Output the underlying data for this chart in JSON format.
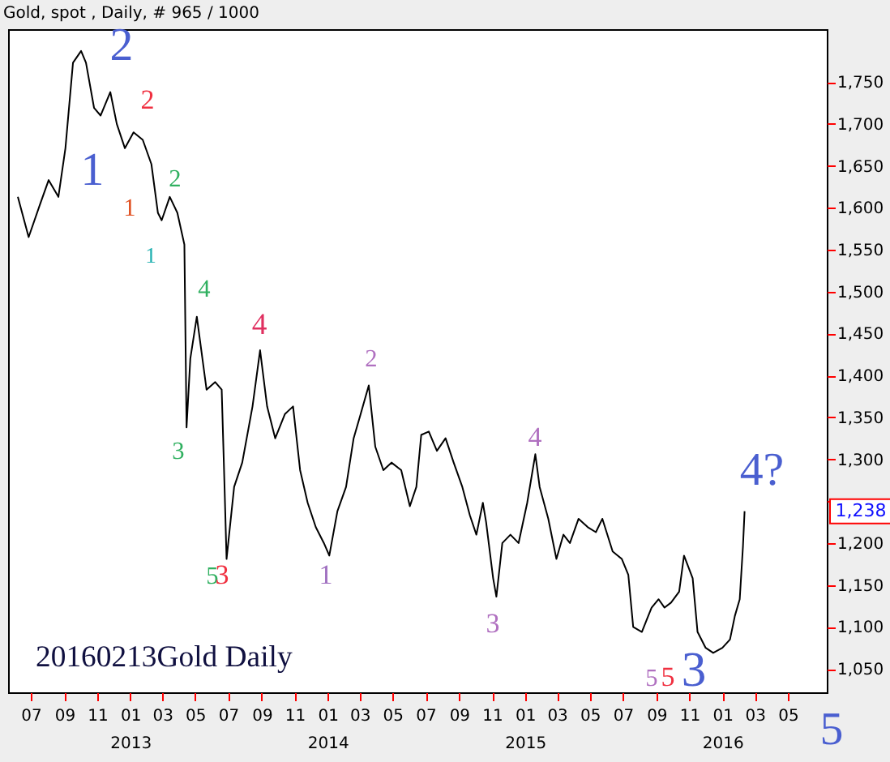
{
  "chart_data": {
    "type": "line",
    "title": "Gold, spot , Daily, # 965 / 1000",
    "x": [
      "2012-06-07",
      "2012-06-27",
      "2012-07-18",
      "2012-08-03",
      "2012-08-21",
      "2012-09-03",
      "2012-09-17",
      "2012-10-02",
      "2012-10-11",
      "2012-10-26",
      "2012-11-07",
      "2012-11-25",
      "2012-12-07",
      "2012-12-22",
      "2013-01-07",
      "2013-01-24",
      "2013-02-09",
      "2013-02-21",
      "2013-02-28",
      "2013-03-15",
      "2013-03-29",
      "2013-04-11",
      "2013-04-15",
      "2013-04-22",
      "2013-05-04",
      "2013-05-22",
      "2013-06-07",
      "2013-06-19",
      "2013-06-24",
      "2013-06-28",
      "2013-07-12",
      "2013-07-27",
      "2013-08-15",
      "2013-08-29",
      "2013-09-11",
      "2013-09-26",
      "2013-10-14",
      "2013-10-29",
      "2013-11-11",
      "2013-11-25",
      "2013-12-10",
      "2013-12-25",
      "2014-01-04",
      "2014-01-19",
      "2014-02-04",
      "2014-02-18",
      "2014-03-03",
      "2014-03-18",
      "2014-03-30",
      "2014-04-14",
      "2014-04-29",
      "2014-05-17",
      "2014-06-02",
      "2014-06-14",
      "2014-06-23",
      "2014-07-07",
      "2014-07-22",
      "2014-08-07",
      "2014-08-22",
      "2014-09-07",
      "2014-09-21",
      "2014-10-03",
      "2014-10-15",
      "2014-10-21",
      "2014-11-03",
      "2014-11-09",
      "2014-11-20",
      "2014-12-05",
      "2014-12-20",
      "2015-01-05",
      "2015-01-20",
      "2015-01-28",
      "2015-02-13",
      "2015-02-28",
      "2015-03-13",
      "2015-03-25",
      "2015-04-10",
      "2015-04-27",
      "2015-05-12",
      "2015-05-24",
      "2015-06-12",
      "2015-06-29",
      "2015-07-11",
      "2015-07-20",
      "2015-08-05",
      "2015-08-23",
      "2015-09-05",
      "2015-09-16",
      "2015-09-28",
      "2015-10-13",
      "2015-10-22",
      "2015-11-07",
      "2015-11-16",
      "2015-12-01",
      "2015-12-15",
      "2016-01-01",
      "2016-01-15",
      "2016-01-24",
      "2016-02-02",
      "2016-02-08",
      "2016-02-11"
    ],
    "series": [
      {
        "color": "#000000",
        "values": [
          1613,
          1565,
          1604,
          1633,
          1613,
          1671,
          1773,
          1787,
          1773,
          1719,
          1710,
          1738,
          1700,
          1671,
          1690,
          1681,
          1652,
          1594,
          1585,
          1613,
          1594,
          1556,
          1338,
          1420,
          1470,
          1383,
          1392,
          1383,
          1273,
          1181,
          1267,
          1296,
          1363,
          1430,
          1363,
          1325,
          1354,
          1363,
          1287,
          1248,
          1219,
          1200,
          1185,
          1238,
          1267,
          1325,
          1354,
          1388,
          1315,
          1287,
          1296,
          1287,
          1244,
          1267,
          1329,
          1333,
          1310,
          1325,
          1296,
          1267,
          1233,
          1210,
          1248,
          1225,
          1158,
          1136,
          1200,
          1210,
          1200,
          1248,
          1306,
          1267,
          1229,
          1181,
          1210,
          1200,
          1229,
          1219,
          1213,
          1229,
          1190,
          1181,
          1162,
          1100,
          1094,
          1123,
          1133,
          1123,
          1129,
          1142,
          1185,
          1158,
          1094,
          1075,
          1069,
          1075,
          1085,
          1113,
          1133,
          1196,
          1238
        ]
      }
    ],
    "xlim": [
      "2012-05-20",
      "2016-07-12"
    ],
    "xticks": [
      {
        "value": "2012-07-01",
        "label": "07"
      },
      {
        "value": "2012-09-01",
        "label": "09"
      },
      {
        "value": "2012-11-01",
        "label": "11"
      },
      {
        "value": "2013-01-01",
        "label": "01\n2013"
      },
      {
        "value": "2013-03-01",
        "label": "03"
      },
      {
        "value": "2013-05-01",
        "label": "05"
      },
      {
        "value": "2013-07-01",
        "label": "07"
      },
      {
        "value": "2013-09-01",
        "label": "09"
      },
      {
        "value": "2013-11-01",
        "label": "11"
      },
      {
        "value": "2014-01-01",
        "label": "01\n2014"
      },
      {
        "value": "2014-03-01",
        "label": "03"
      },
      {
        "value": "2014-05-01",
        "label": "05"
      },
      {
        "value": "2014-07-01",
        "label": "07"
      },
      {
        "value": "2014-09-01",
        "label": "09"
      },
      {
        "value": "2014-11-01",
        "label": "11"
      },
      {
        "value": "2015-01-01",
        "label": "01\n2015"
      },
      {
        "value": "2015-03-01",
        "label": "03"
      },
      {
        "value": "2015-05-01",
        "label": "05"
      },
      {
        "value": "2015-07-01",
        "label": "07"
      },
      {
        "value": "2015-09-01",
        "label": "09"
      },
      {
        "value": "2015-11-01",
        "label": "11"
      },
      {
        "value": "2016-01-01",
        "label": "01\n2016"
      },
      {
        "value": "2016-03-01",
        "label": "03"
      },
      {
        "value": "2016-05-01",
        "label": "05"
      }
    ],
    "ylim": [
      1022,
      1813
    ],
    "yticks": [
      {
        "value": 1050,
        "label": "1,050"
      },
      {
        "value": 1100,
        "label": "1,100"
      },
      {
        "value": 1150,
        "label": "1,150"
      },
      {
        "value": 1200,
        "label": "1,200"
      },
      {
        "value": 1250,
        "label": null
      },
      {
        "value": 1300,
        "label": "1,300"
      },
      {
        "value": 1350,
        "label": "1,350"
      },
      {
        "value": 1400,
        "label": "1,400"
      },
      {
        "value": 1450,
        "label": "1,450"
      },
      {
        "value": 1500,
        "label": "1,500"
      },
      {
        "value": 1550,
        "label": "1,550"
      },
      {
        "value": 1600,
        "label": "1,600"
      },
      {
        "value": 1650,
        "label": "1,650"
      },
      {
        "value": 1700,
        "label": "1,700"
      },
      {
        "value": 1750,
        "label": "1,750"
      }
    ],
    "grid": false,
    "marker": "none",
    "line_style": "solid",
    "annotations": [
      "1",
      "2",
      "2",
      "1",
      "2",
      "1",
      "4",
      "3",
      "4",
      "5",
      "3",
      "1",
      "2",
      "3",
      "4",
      "5",
      "5",
      "3",
      "4?",
      {
        "text": "1,238",
        "y": 1238
      },
      "20160213Gold Daily",
      "5"
    ]
  }
}
